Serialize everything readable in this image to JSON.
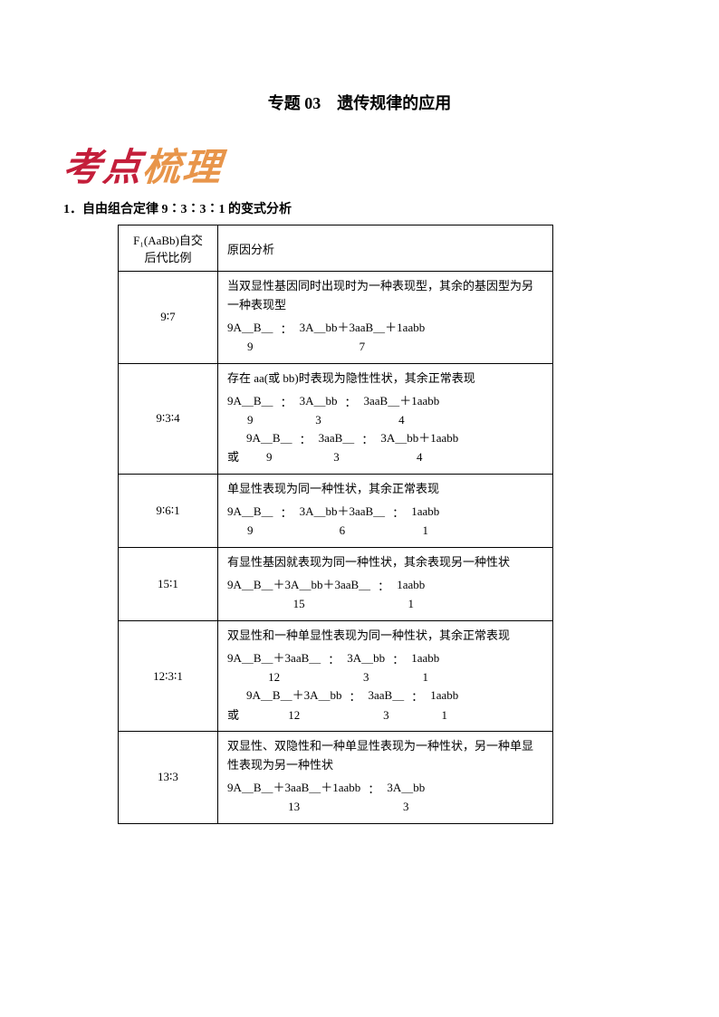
{
  "title": "专题 03　遗传规律的应用",
  "heading": {
    "text": "考点梳理",
    "color_left": "#c41e3a",
    "color_right": "#e8954a"
  },
  "subsection": "1．自由组合定律 9∶3∶3∶1 的变式分析",
  "table": {
    "headers": {
      "col1": "F₁(AaBb)自交后代比例",
      "col2": "原因分析"
    },
    "rows": [
      {
        "ratio": "9∶7",
        "desc": "当双显性基因同时出现时为一种表现型，其余的基因型为另一种表现型",
        "formulas": [
          [
            {
              "top": "9A＿B＿",
              "bot": "9"
            },
            ":",
            {
              "top": "3A＿bb＋3aaB＿＋1aabb",
              "bot": "7"
            }
          ]
        ]
      },
      {
        "ratio": "9∶3∶4",
        "desc": "存在 aa(或 bb)时表现为隐性性状，其余正常表现",
        "formulas": [
          [
            {
              "top": "9A＿B＿",
              "bot": "9"
            },
            ":",
            {
              "top": "3A＿bb",
              "bot": "3"
            },
            ":",
            {
              "top": "3aaB＿＋1aabb",
              "bot": "4"
            }
          ],
          [
            "或",
            {
              "top": "9A＿B＿",
              "bot": "9"
            },
            ":",
            {
              "top": "3aaB＿",
              "bot": "3"
            },
            ":",
            {
              "top": "3A＿bb＋1aabb",
              "bot": "4"
            }
          ]
        ]
      },
      {
        "ratio": "9∶6∶1",
        "desc": "单显性表现为同一种性状，其余正常表现",
        "formulas": [
          [
            {
              "top": "9A＿B＿",
              "bot": "9"
            },
            ":",
            {
              "top": "3A＿bb＋3aaB＿",
              "bot": "6"
            },
            ":",
            {
              "top": "1aabb",
              "bot": "1"
            }
          ]
        ]
      },
      {
        "ratio": "15∶1",
        "desc": "有显性基因就表现为同一种性状，其余表现另一种性状",
        "formulas": [
          [
            {
              "top": "9A＿B＿＋3A＿bb＋3aaB＿",
              "bot": "15"
            },
            ":",
            {
              "top": "1aabb",
              "bot": "1"
            }
          ]
        ]
      },
      {
        "ratio": "12∶3∶1",
        "desc": "双显性和一种单显性表现为同一种性状，其余正常表现",
        "formulas": [
          [
            {
              "top": "9A＿B＿＋3aaB＿",
              "bot": "12"
            },
            ":",
            {
              "top": "3A＿bb",
              "bot": "3"
            },
            ":",
            {
              "top": "1aabb",
              "bot": "1"
            }
          ],
          [
            "或",
            {
              "top": "9A＿B＿＋3A＿bb",
              "bot": "12"
            },
            ":",
            {
              "top": "3aaB＿",
              "bot": "3"
            },
            ":",
            {
              "top": "1aabb",
              "bot": "1"
            }
          ]
        ]
      },
      {
        "ratio": "13∶3",
        "desc": "双显性、双隐性和一种单显性表现为一种性状，另一种单显性表现为另一种性状",
        "formulas": [
          [
            {
              "top": "9A＿B＿＋3aaB＿＋1aabb",
              "bot": "13"
            },
            ":",
            {
              "top": "3A＿bb",
              "bot": "3"
            }
          ]
        ]
      }
    ]
  }
}
